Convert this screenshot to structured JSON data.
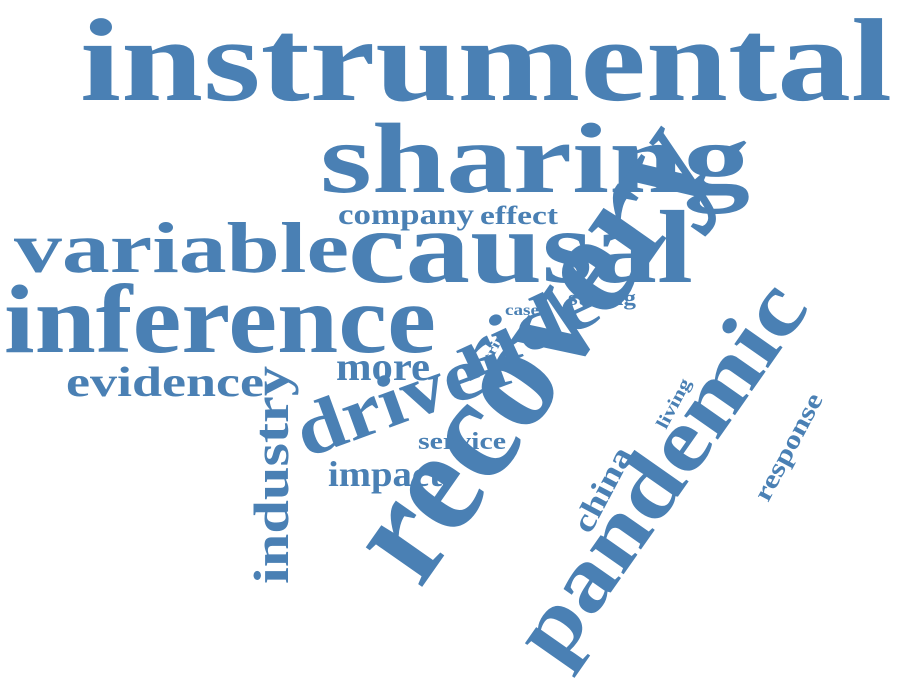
{
  "word_cloud": {
    "color": "#4a80b4",
    "words": [
      {
        "text": "instrumental",
        "orientation": "horizontal"
      },
      {
        "text": "sharing",
        "orientation": "horizontal"
      },
      {
        "text": "causal",
        "orientation": "horizontal"
      },
      {
        "text": "variable",
        "orientation": "horizontal"
      },
      {
        "text": "inference",
        "orientation": "horizontal"
      },
      {
        "text": "recovery",
        "orientation": "rotated"
      },
      {
        "text": "pandemic",
        "orientation": "rotated"
      },
      {
        "text": "ride",
        "orientation": "rotated"
      },
      {
        "text": "driver",
        "orientation": "rotated"
      },
      {
        "text": "industry",
        "orientation": "vertical"
      },
      {
        "text": "evidence",
        "orientation": "horizontal"
      },
      {
        "text": "company",
        "orientation": "horizontal"
      },
      {
        "text": "effect",
        "orientation": "horizontal"
      },
      {
        "text": "more",
        "orientation": "horizontal"
      },
      {
        "text": "impact",
        "orientation": "horizontal"
      },
      {
        "text": "service",
        "orientation": "horizontal"
      },
      {
        "text": "strong",
        "orientation": "horizontal"
      },
      {
        "text": "case",
        "orientation": "horizontal"
      },
      {
        "text": "trip",
        "orientation": "rotated"
      },
      {
        "text": "living",
        "orientation": "rotated"
      },
      {
        "text": "china",
        "orientation": "rotated"
      },
      {
        "text": "response",
        "orientation": "rotated"
      }
    ]
  }
}
